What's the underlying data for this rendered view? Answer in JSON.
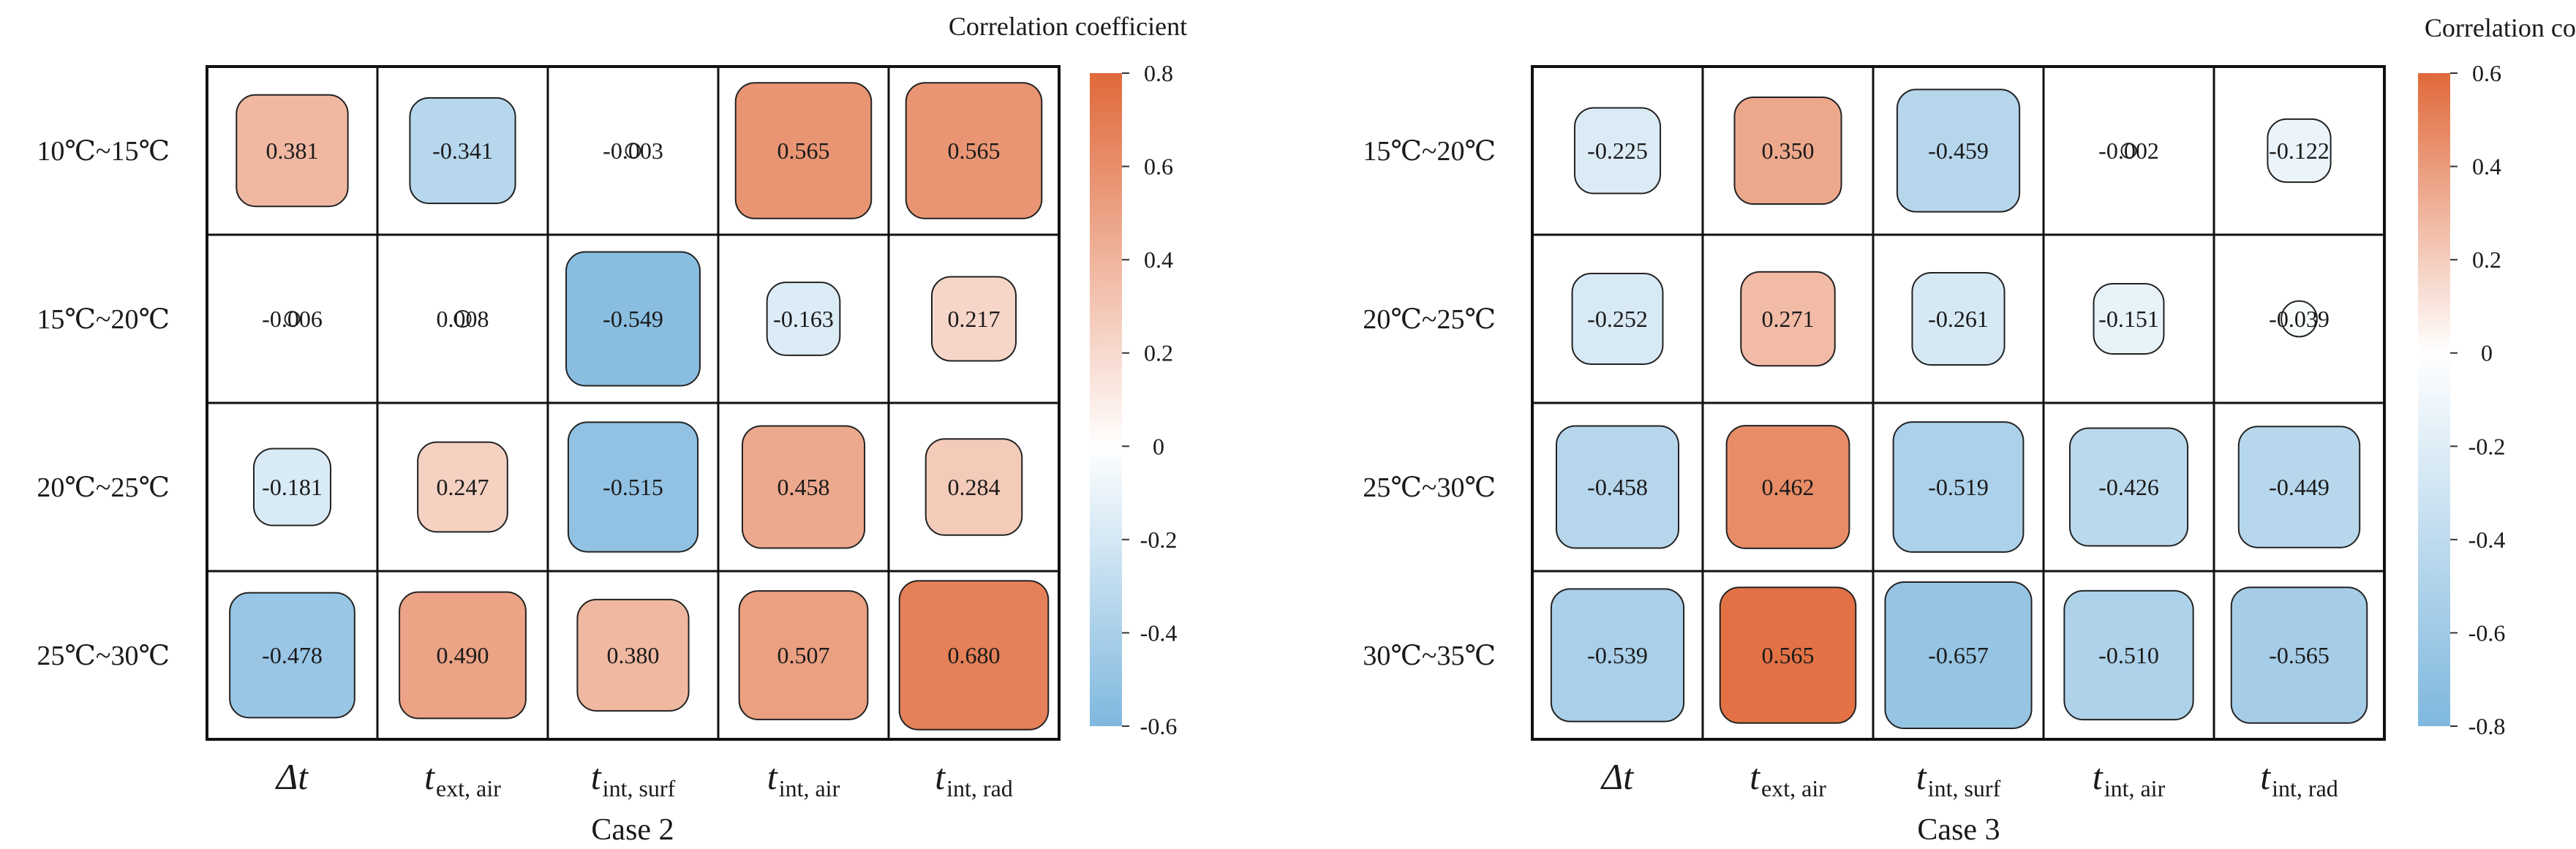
{
  "chart_data": [
    {
      "type": "heatmap",
      "title": "Case 2",
      "colorbar": {
        "label": "Correlation coefficient",
        "range": [
          -0.6,
          0.8
        ],
        "ticks": [
          "0.8",
          "0.6",
          "0.4",
          "0.2",
          "0",
          "-0.2",
          "-0.4",
          "-0.6"
        ],
        "tick_values": [
          0.8,
          0.6,
          0.4,
          0.2,
          0.0,
          -0.2,
          -0.4,
          -0.6
        ]
      },
      "rows": [
        "10℃~15℃",
        "15℃~20℃",
        "20℃~25℃",
        "25℃~30℃"
      ],
      "columns": [
        {
          "main": "Δt",
          "sub": ""
        },
        {
          "main": "t",
          "sub": "ext, air"
        },
        {
          "main": "t",
          "sub": "int, surf"
        },
        {
          "main": "t",
          "sub": "int, air"
        },
        {
          "main": "t",
          "sub": "int, rad"
        }
      ],
      "values": [
        [
          0.381,
          -0.341,
          -0.003,
          0.565,
          0.565
        ],
        [
          -0.006,
          0.008,
          -0.549,
          -0.163,
          0.217
        ],
        [
          -0.181,
          0.247,
          -0.515,
          0.458,
          0.284
        ],
        [
          -0.478,
          0.49,
          0.38,
          0.507,
          0.68
        ]
      ],
      "labels": [
        [
          "0.381",
          "-0.341",
          "-0.003",
          "0.565",
          "0.565"
        ],
        [
          "-0.006",
          "0.008",
          "-0.549",
          "-0.163",
          "0.217"
        ],
        [
          "-0.181",
          "0.247",
          "-0.515",
          "0.458",
          "0.284"
        ],
        [
          "-0.478",
          "0.490",
          "0.380",
          "0.507",
          "0.680"
        ]
      ]
    },
    {
      "type": "heatmap",
      "title": "Case 3",
      "colorbar": {
        "label": "Correlation coefficient",
        "range": [
          -0.8,
          0.6
        ],
        "ticks": [
          "0.6",
          "0.4",
          "0.2",
          "0",
          "-0.2",
          "-0.4",
          "-0.6",
          "-0.8"
        ],
        "tick_values": [
          0.6,
          0.4,
          0.2,
          0.0,
          -0.2,
          -0.4,
          -0.6,
          -0.8
        ]
      },
      "rows": [
        "15℃~20℃",
        "20℃~25℃",
        "25℃~30℃",
        "30℃~35℃"
      ],
      "columns": [
        {
          "main": "Δt",
          "sub": ""
        },
        {
          "main": "t",
          "sub": "ext, air"
        },
        {
          "main": "t",
          "sub": "int, surf"
        },
        {
          "main": "t",
          "sub": "int, air"
        },
        {
          "main": "t",
          "sub": "int, rad"
        }
      ],
      "values": [
        [
          -0.225,
          0.35,
          -0.459,
          -0.002,
          -0.122
        ],
        [
          -0.252,
          0.271,
          -0.261,
          -0.151,
          -0.039
        ],
        [
          -0.458,
          0.462,
          -0.519,
          -0.426,
          -0.449
        ],
        [
          -0.539,
          0.565,
          -0.657,
          -0.51,
          -0.565
        ]
      ],
      "labels": [
        [
          "-0.225",
          "0.350",
          "-0.459",
          "-0.002",
          "-0.122"
        ],
        [
          "-0.252",
          "0.271",
          "-0.261",
          "-0.151",
          "-0.039"
        ],
        [
          "-0.458",
          "0.462",
          "-0.519",
          "-0.426",
          "-0.449"
        ],
        [
          "-0.539",
          "0.565",
          "-0.657",
          "-0.510",
          "-0.565"
        ]
      ]
    }
  ],
  "colors": {
    "positive": "#e0693a",
    "neutral": "#ffffff",
    "negative": "#7fb8de",
    "grid": "#111111",
    "cell_stroke": "#222222"
  }
}
